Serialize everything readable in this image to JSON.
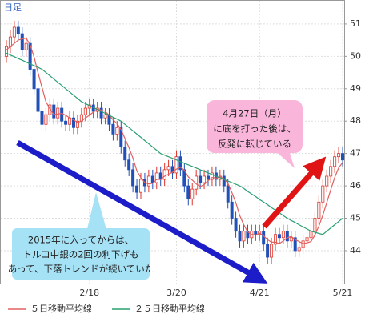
{
  "chart_data": {
    "type": "candlestick",
    "label": "日足",
    "categories": [
      null,
      null,
      null,
      null,
      null,
      null,
      null,
      null,
      null,
      null,
      null,
      null,
      null,
      null,
      null,
      null,
      null,
      null,
      null,
      null,
      null,
      "2/18",
      null,
      null,
      null,
      null,
      null,
      null,
      null,
      null,
      null,
      null,
      null,
      null,
      null,
      null,
      null,
      null,
      null,
      null,
      null,
      null,
      null,
      "3/20",
      null,
      null,
      null,
      null,
      null,
      null,
      null,
      null,
      null,
      null,
      null,
      null,
      null,
      null,
      null,
      null,
      null,
      null,
      null,
      null,
      "4/21",
      null,
      null,
      null,
      null,
      null,
      null,
      null,
      null,
      null,
      null,
      null,
      null,
      null,
      null,
      null,
      null,
      null,
      null,
      null,
      null,
      "5/21"
    ],
    "open": [
      50.0,
      50.3,
      50.6,
      50.9,
      50.7,
      50.2,
      50.4,
      49.6,
      49.0,
      48.3,
      47.9,
      48.2,
      48.5,
      48.1,
      48.4,
      48.0,
      47.9,
      48.1,
      47.8,
      48.0,
      48.2,
      48.4,
      48.5,
      48.3,
      48.4,
      48.1,
      48.2,
      47.9,
      47.6,
      47.8,
      47.2,
      46.8,
      46.5,
      46.0,
      45.8,
      46.2,
      46.0,
      46.3,
      46.1,
      46.4,
      46.2,
      46.5,
      46.6,
      46.4,
      46.9,
      46.5,
      46.0,
      45.6,
      45.9,
      46.3,
      46.1,
      46.3,
      46.2,
      46.4,
      46.2,
      46.3,
      46.0,
      45.5,
      45.0,
      44.6,
      44.3,
      44.6,
      44.4,
      44.6,
      44.5,
      44.6,
      44.2,
      43.8,
      44.2,
      44.5,
      44.4,
      44.6,
      44.3,
      44.4,
      44.0,
      44.1,
      44.3,
      44.4,
      44.6,
      45.0,
      45.5,
      46.0,
      46.3,
      46.6,
      46.9,
      47.0
    ],
    "high": [
      50.5,
      50.8,
      51.1,
      51.1,
      50.9,
      50.6,
      50.6,
      49.8,
      49.2,
      48.5,
      48.4,
      48.7,
      48.7,
      48.6,
      48.6,
      48.2,
      48.3,
      48.3,
      48.2,
      48.4,
      48.6,
      48.7,
      48.7,
      48.6,
      48.6,
      48.4,
      48.4,
      48.1,
      48.0,
      48.0,
      47.4,
      47.0,
      46.7,
      46.2,
      46.4,
      46.4,
      46.5,
      46.5,
      46.6,
      46.6,
      46.7,
      46.8,
      46.8,
      47.1,
      47.1,
      46.7,
      46.2,
      46.1,
      46.5,
      46.5,
      46.5,
      46.5,
      46.6,
      46.6,
      46.5,
      46.5,
      46.2,
      45.7,
      45.2,
      44.8,
      44.8,
      44.8,
      44.8,
      44.8,
      44.8,
      44.8,
      44.4,
      44.4,
      44.7,
      44.7,
      44.8,
      44.8,
      44.6,
      44.6,
      44.3,
      44.5,
      44.6,
      44.8,
      45.2,
      45.7,
      46.2,
      46.5,
      46.8,
      47.1,
      47.2,
      47.2
    ],
    "low": [
      49.8,
      50.1,
      50.4,
      50.5,
      50.0,
      50.0,
      49.4,
      48.8,
      48.1,
      47.7,
      47.7,
      48.0,
      47.9,
      47.9,
      47.8,
      47.7,
      47.7,
      47.6,
      47.6,
      47.8,
      48.0,
      48.2,
      48.1,
      48.1,
      47.9,
      47.9,
      47.7,
      47.4,
      47.4,
      47.0,
      46.6,
      46.3,
      45.8,
      45.6,
      45.6,
      45.8,
      45.8,
      45.9,
      45.9,
      46.0,
      46.0,
      46.3,
      46.2,
      46.2,
      46.3,
      45.8,
      45.4,
      45.4,
      45.7,
      45.9,
      45.9,
      46.0,
      46.0,
      46.0,
      46.0,
      45.8,
      45.3,
      44.8,
      44.4,
      44.1,
      44.1,
      44.2,
      44.2,
      44.3,
      44.3,
      44.0,
      43.6,
      43.6,
      44.0,
      44.2,
      44.2,
      44.1,
      44.1,
      43.8,
      43.8,
      43.9,
      44.1,
      44.2,
      44.4,
      44.8,
      45.3,
      45.8,
      46.1,
      46.4,
      46.7,
      46.6
    ],
    "close": [
      50.3,
      50.6,
      50.9,
      50.7,
      50.2,
      50.4,
      49.6,
      49.0,
      48.3,
      47.9,
      48.2,
      48.5,
      48.1,
      48.4,
      48.0,
      47.9,
      48.1,
      47.8,
      48.0,
      48.2,
      48.4,
      48.5,
      48.3,
      48.4,
      48.1,
      48.2,
      47.9,
      47.6,
      47.8,
      47.2,
      46.8,
      46.5,
      46.0,
      45.8,
      46.2,
      46.0,
      46.3,
      46.1,
      46.4,
      46.2,
      46.5,
      46.6,
      46.4,
      46.9,
      46.5,
      46.0,
      45.6,
      45.9,
      46.3,
      46.1,
      46.3,
      46.2,
      46.4,
      46.2,
      46.3,
      46.0,
      45.5,
      45.0,
      44.6,
      44.3,
      44.6,
      44.4,
      44.6,
      44.5,
      44.6,
      44.2,
      43.8,
      44.2,
      44.5,
      44.4,
      44.6,
      44.3,
      44.4,
      44.0,
      44.1,
      44.3,
      44.4,
      44.6,
      45.0,
      45.5,
      46.0,
      46.3,
      46.6,
      46.9,
      47.0,
      46.8
    ],
    "up_color": "#e0352b",
    "down_color": "#2050b8",
    "series": [
      {
        "name": "５日移動平均線",
        "color": "#e06060",
        "values": [
          50.2,
          50.3,
          50.4,
          50.5,
          50.54,
          50.56,
          50.36,
          49.98,
          49.5,
          49.04,
          48.6,
          48.38,
          48.2,
          48.22,
          48.24,
          48.18,
          48.1,
          48.04,
          47.96,
          48.0,
          48.1,
          48.18,
          48.28,
          48.36,
          48.34,
          48.3,
          48.18,
          48.04,
          47.92,
          47.74,
          47.46,
          47.18,
          46.86,
          46.46,
          46.26,
          46.1,
          46.06,
          46.08,
          46.2,
          46.2,
          46.3,
          46.36,
          46.42,
          46.52,
          46.58,
          46.48,
          46.28,
          46.18,
          46.06,
          45.98,
          46.04,
          46.16,
          46.26,
          46.24,
          46.28,
          46.22,
          46.08,
          45.8,
          45.48,
          45.08,
          44.8,
          44.58,
          44.5,
          44.48,
          44.54,
          44.46,
          44.34,
          44.26,
          44.26,
          44.22,
          44.3,
          44.4,
          44.44,
          44.34,
          44.28,
          44.22,
          44.24,
          44.28,
          44.48,
          44.76,
          45.1,
          45.48,
          45.88,
          46.26,
          46.56,
          46.72
        ]
      },
      {
        "name": "２５日移動平均線",
        "color": "#2aa070",
        "values": [
          50.1,
          50.04,
          49.99,
          49.93,
          49.88,
          49.82,
          49.77,
          49.71,
          49.66,
          49.6,
          49.5,
          49.4,
          49.3,
          49.2,
          49.1,
          49.0,
          48.9,
          48.8,
          48.7,
          48.6,
          48.54,
          48.48,
          48.42,
          48.36,
          48.3,
          48.24,
          48.18,
          48.12,
          48.06,
          48.0,
          47.9,
          47.8,
          47.7,
          47.6,
          47.5,
          47.4,
          47.3,
          47.2,
          47.1,
          47.0,
          46.95,
          46.9,
          46.85,
          46.8,
          46.75,
          46.7,
          46.65,
          46.6,
          46.55,
          46.5,
          46.45,
          46.4,
          46.35,
          46.3,
          46.25,
          46.2,
          46.15,
          46.1,
          46.05,
          46.0,
          45.92,
          45.83,
          45.75,
          45.67,
          45.58,
          45.5,
          45.42,
          45.33,
          45.25,
          45.17,
          45.08,
          45.0,
          44.93,
          44.87,
          44.8,
          44.73,
          44.67,
          44.6,
          44.57,
          44.53,
          44.5,
          44.6,
          44.7,
          44.8,
          44.9,
          45.0
        ]
      }
    ],
    "ylim": [
      42.96,
      51.74
    ],
    "yticks": [
      44,
      45,
      46,
      47,
      48,
      49,
      50,
      51
    ],
    "grid": true,
    "annotations": [
      {
        "lines": [
          "4月27日（月）",
          "に底を打った後は、",
          "反発に転じている"
        ]
      },
      {
        "lines": [
          "2015年に入ってからは、",
          "トルコ中銀の2回の利下げも",
          "あって、下落トレンドが続いていた"
        ]
      }
    ]
  }
}
